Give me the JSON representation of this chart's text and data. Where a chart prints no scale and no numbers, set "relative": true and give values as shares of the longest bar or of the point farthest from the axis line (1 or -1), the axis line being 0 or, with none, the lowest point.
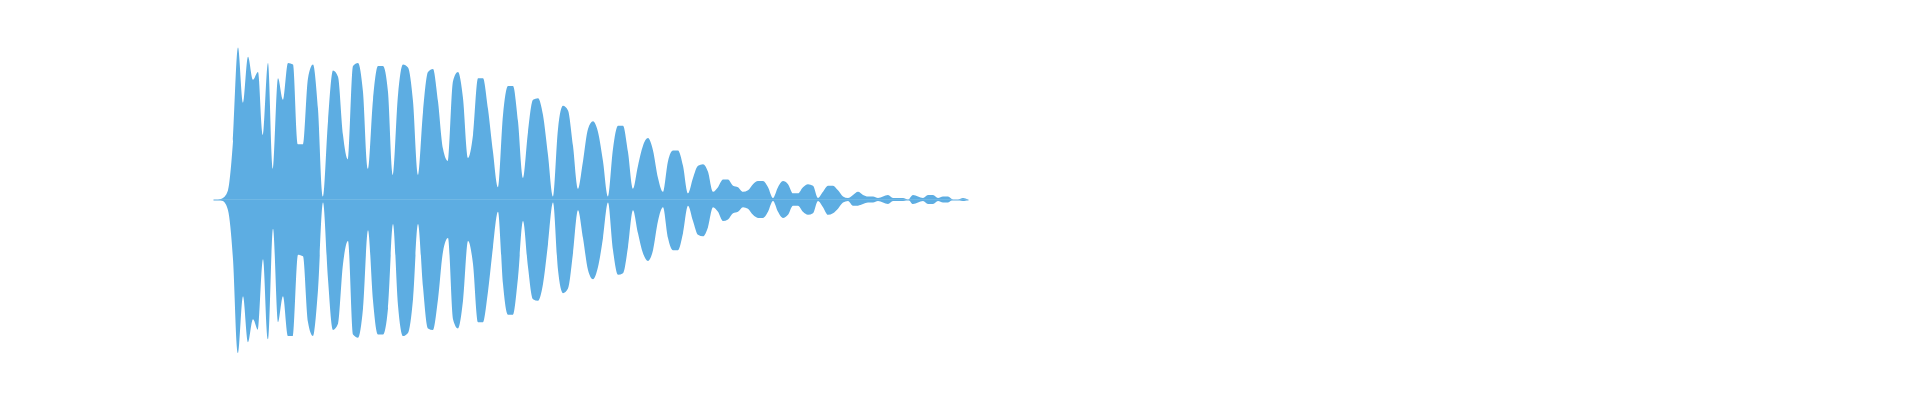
{
  "chart_data": {
    "type": "area",
    "relative": true,
    "categories": [
      null,
      null,
      null,
      null,
      null,
      null,
      null,
      null,
      null,
      null,
      null,
      null,
      null,
      null,
      null,
      null,
      null,
      null,
      null,
      null,
      null,
      null,
      null,
      null,
      null,
      null,
      null,
      null,
      null,
      null,
      null,
      null,
      null,
      null,
      null,
      null,
      null,
      null,
      null,
      null,
      null,
      null,
      null,
      null,
      null,
      null,
      null,
      null,
      null,
      null,
      null,
      null,
      null,
      null,
      null,
      null,
      null,
      null,
      null,
      null,
      null,
      null,
      null,
      null,
      null,
      null,
      null,
      null,
      null,
      null,
      null,
      null,
      null,
      null,
      null,
      null,
      null,
      null,
      null,
      null,
      null,
      null,
      null,
      null,
      null,
      null,
      null,
      null,
      null,
      null,
      null,
      null,
      null,
      null,
      null,
      null,
      null,
      null,
      null,
      null,
      null,
      null,
      null,
      null,
      null,
      null,
      null,
      null,
      null,
      null,
      null,
      null,
      null,
      null,
      null,
      null,
      null,
      null,
      null,
      null,
      null,
      null,
      null,
      null,
      null,
      null,
      null,
      null,
      null,
      null,
      null,
      null,
      null,
      null,
      null,
      null,
      null,
      null,
      null,
      null,
      null,
      null,
      null,
      null,
      null,
      null,
      null,
      null,
      null,
      null,
      null,
      null
    ],
    "series": [
      {
        "color": "#5dade2",
        "values": [
          0,
          0,
          0.01,
          0.06,
          0.38,
          0.99,
          0.63,
          0.93,
          0.78,
          0.83,
          0.42,
          0.89,
          0.2,
          0.79,
          0.65,
          0.89,
          0.88,
          0.36,
          0.36,
          0.79,
          0.88,
          0.59,
          0.02,
          0.51,
          0.84,
          0.8,
          0.42,
          0.26,
          0.87,
          0.89,
          0.7,
          0.2,
          0.65,
          0.87,
          0.87,
          0.7,
          0.16,
          0.68,
          0.88,
          0.86,
          0.64,
          0.16,
          0.57,
          0.83,
          0.85,
          0.64,
          0.33,
          0.25,
          0.77,
          0.83,
          0.66,
          0.27,
          0.42,
          0.79,
          0.79,
          0.59,
          0.31,
          0.08,
          0.55,
          0.74,
          0.74,
          0.51,
          0.14,
          0.44,
          0.65,
          0.66,
          0.55,
          0.29,
          0.02,
          0.46,
          0.61,
          0.58,
          0.35,
          0.07,
          0.25,
          0.46,
          0.51,
          0.44,
          0.25,
          0.02,
          0.33,
          0.48,
          0.48,
          0.31,
          0.07,
          0.22,
          0.35,
          0.4,
          0.32,
          0.14,
          0.05,
          0.25,
          0.32,
          0.32,
          0.22,
          0.04,
          0.14,
          0.22,
          0.23,
          0.18,
          0.05,
          0.08,
          0.13,
          0.13,
          0.09,
          0.08,
          0.05,
          0.06,
          0.1,
          0.12,
          0.12,
          0.08,
          0.01,
          0.08,
          0.12,
          0.1,
          0.04,
          0.04,
          0.08,
          0.1,
          0.09,
          0.01,
          0.05,
          0.09,
          0.09,
          0.06,
          0.02,
          0.01,
          0.03,
          0.05,
          0.03,
          0.02,
          0.02,
          0.01,
          0.02,
          0.03,
          0.01,
          0.01,
          0.01,
          0,
          0.03,
          0.02,
          0.01,
          0.03,
          0.03,
          0.01,
          0.02,
          0.02,
          0,
          0,
          0.01,
          0
        ]
      },
      {
        "color": "#5dade2",
        "values": [
          0,
          0,
          -0.01,
          -0.07,
          -0.39,
          -1,
          -0.63,
          -0.93,
          -0.78,
          -0.85,
          -0.39,
          -0.91,
          -0.19,
          -0.8,
          -0.63,
          -0.89,
          -0.89,
          -0.36,
          -0.37,
          -0.8,
          -0.89,
          -0.59,
          -0.02,
          -0.52,
          -0.85,
          -0.81,
          -0.42,
          -0.27,
          -0.88,
          -0.9,
          -0.71,
          -0.2,
          -0.66,
          -0.88,
          -0.88,
          -0.71,
          -0.16,
          -0.69,
          -0.89,
          -0.87,
          -0.65,
          -0.16,
          -0.57,
          -0.84,
          -0.85,
          -0.65,
          -0.34,
          -0.25,
          -0.78,
          -0.84,
          -0.66,
          -0.27,
          -0.42,
          -0.8,
          -0.8,
          -0.6,
          -0.31,
          -0.08,
          -0.55,
          -0.75,
          -0.75,
          -0.51,
          -0.14,
          -0.44,
          -0.65,
          -0.66,
          -0.55,
          -0.29,
          -0.02,
          -0.46,
          -0.61,
          -0.58,
          -0.35,
          -0.07,
          -0.25,
          -0.46,
          -0.52,
          -0.44,
          -0.25,
          -0.02,
          -0.33,
          -0.49,
          -0.48,
          -0.31,
          -0.07,
          -0.22,
          -0.35,
          -0.4,
          -0.33,
          -0.14,
          -0.05,
          -0.25,
          -0.33,
          -0.33,
          -0.22,
          -0.04,
          -0.14,
          -0.23,
          -0.24,
          -0.18,
          -0.05,
          -0.08,
          -0.14,
          -0.13,
          -0.09,
          -0.08,
          -0.05,
          -0.06,
          -0.1,
          -0.12,
          -0.12,
          -0.08,
          -0.01,
          -0.08,
          -0.12,
          -0.1,
          -0.04,
          -0.04,
          -0.08,
          -0.1,
          -0.09,
          -0.01,
          -0.05,
          -0.1,
          -0.09,
          -0.06,
          -0.02,
          -0.01,
          -0.04,
          -0.04,
          -0.03,
          -0.02,
          -0.02,
          -0.01,
          -0.02,
          -0.03,
          -0.01,
          -0.01,
          -0.01,
          0,
          -0.03,
          -0.02,
          -0.01,
          -0.03,
          -0.03,
          -0.01,
          -0.02,
          -0.02,
          0,
          0,
          -0.01,
          0
        ]
      }
    ]
  }
}
